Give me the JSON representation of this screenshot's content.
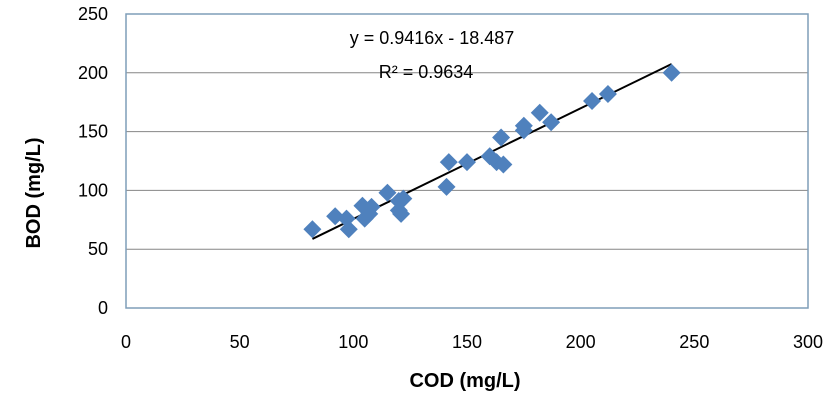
{
  "chart_data": {
    "type": "scatter",
    "title": "",
    "xlabel": "COD (mg/L)",
    "ylabel": "BOD (mg/L)",
    "xlim": [
      0,
      300
    ],
    "ylim": [
      0,
      250
    ],
    "x_ticks": [
      0,
      50,
      100,
      150,
      200,
      250,
      300
    ],
    "y_ticks": [
      0,
      50,
      100,
      150,
      200,
      250
    ],
    "grid": {
      "horizontal": true,
      "vertical": false
    },
    "legend": "none",
    "marker": "diamond",
    "marker_color": "#4F81BD",
    "trendline_color": "#000000",
    "plot_border_color": "#7F9DB9",
    "series": [
      {
        "points": [
          [
            82,
            67
          ],
          [
            92,
            78
          ],
          [
            97,
            76
          ],
          [
            98,
            67
          ],
          [
            104,
            87
          ],
          [
            105,
            76
          ],
          [
            107,
            80
          ],
          [
            108,
            86
          ],
          [
            115,
            98
          ],
          [
            120,
            91
          ],
          [
            120,
            83
          ],
          [
            121,
            80
          ],
          [
            122,
            93
          ],
          [
            141,
            103
          ],
          [
            142,
            124
          ],
          [
            150,
            124
          ],
          [
            160,
            129
          ],
          [
            163,
            124
          ],
          [
            165,
            145
          ],
          [
            166,
            122
          ],
          [
            175,
            155
          ],
          [
            175,
            151
          ],
          [
            182,
            166
          ],
          [
            187,
            158
          ],
          [
            205,
            176
          ],
          [
            212,
            182
          ],
          [
            240,
            200
          ]
        ]
      }
    ],
    "trendline": {
      "slope": 0.9416,
      "intercept": -18.487,
      "x_range": [
        82,
        240
      ],
      "equation": "y = 0.9416x - 18.487",
      "r2": "R² = 0.9634"
    }
  }
}
